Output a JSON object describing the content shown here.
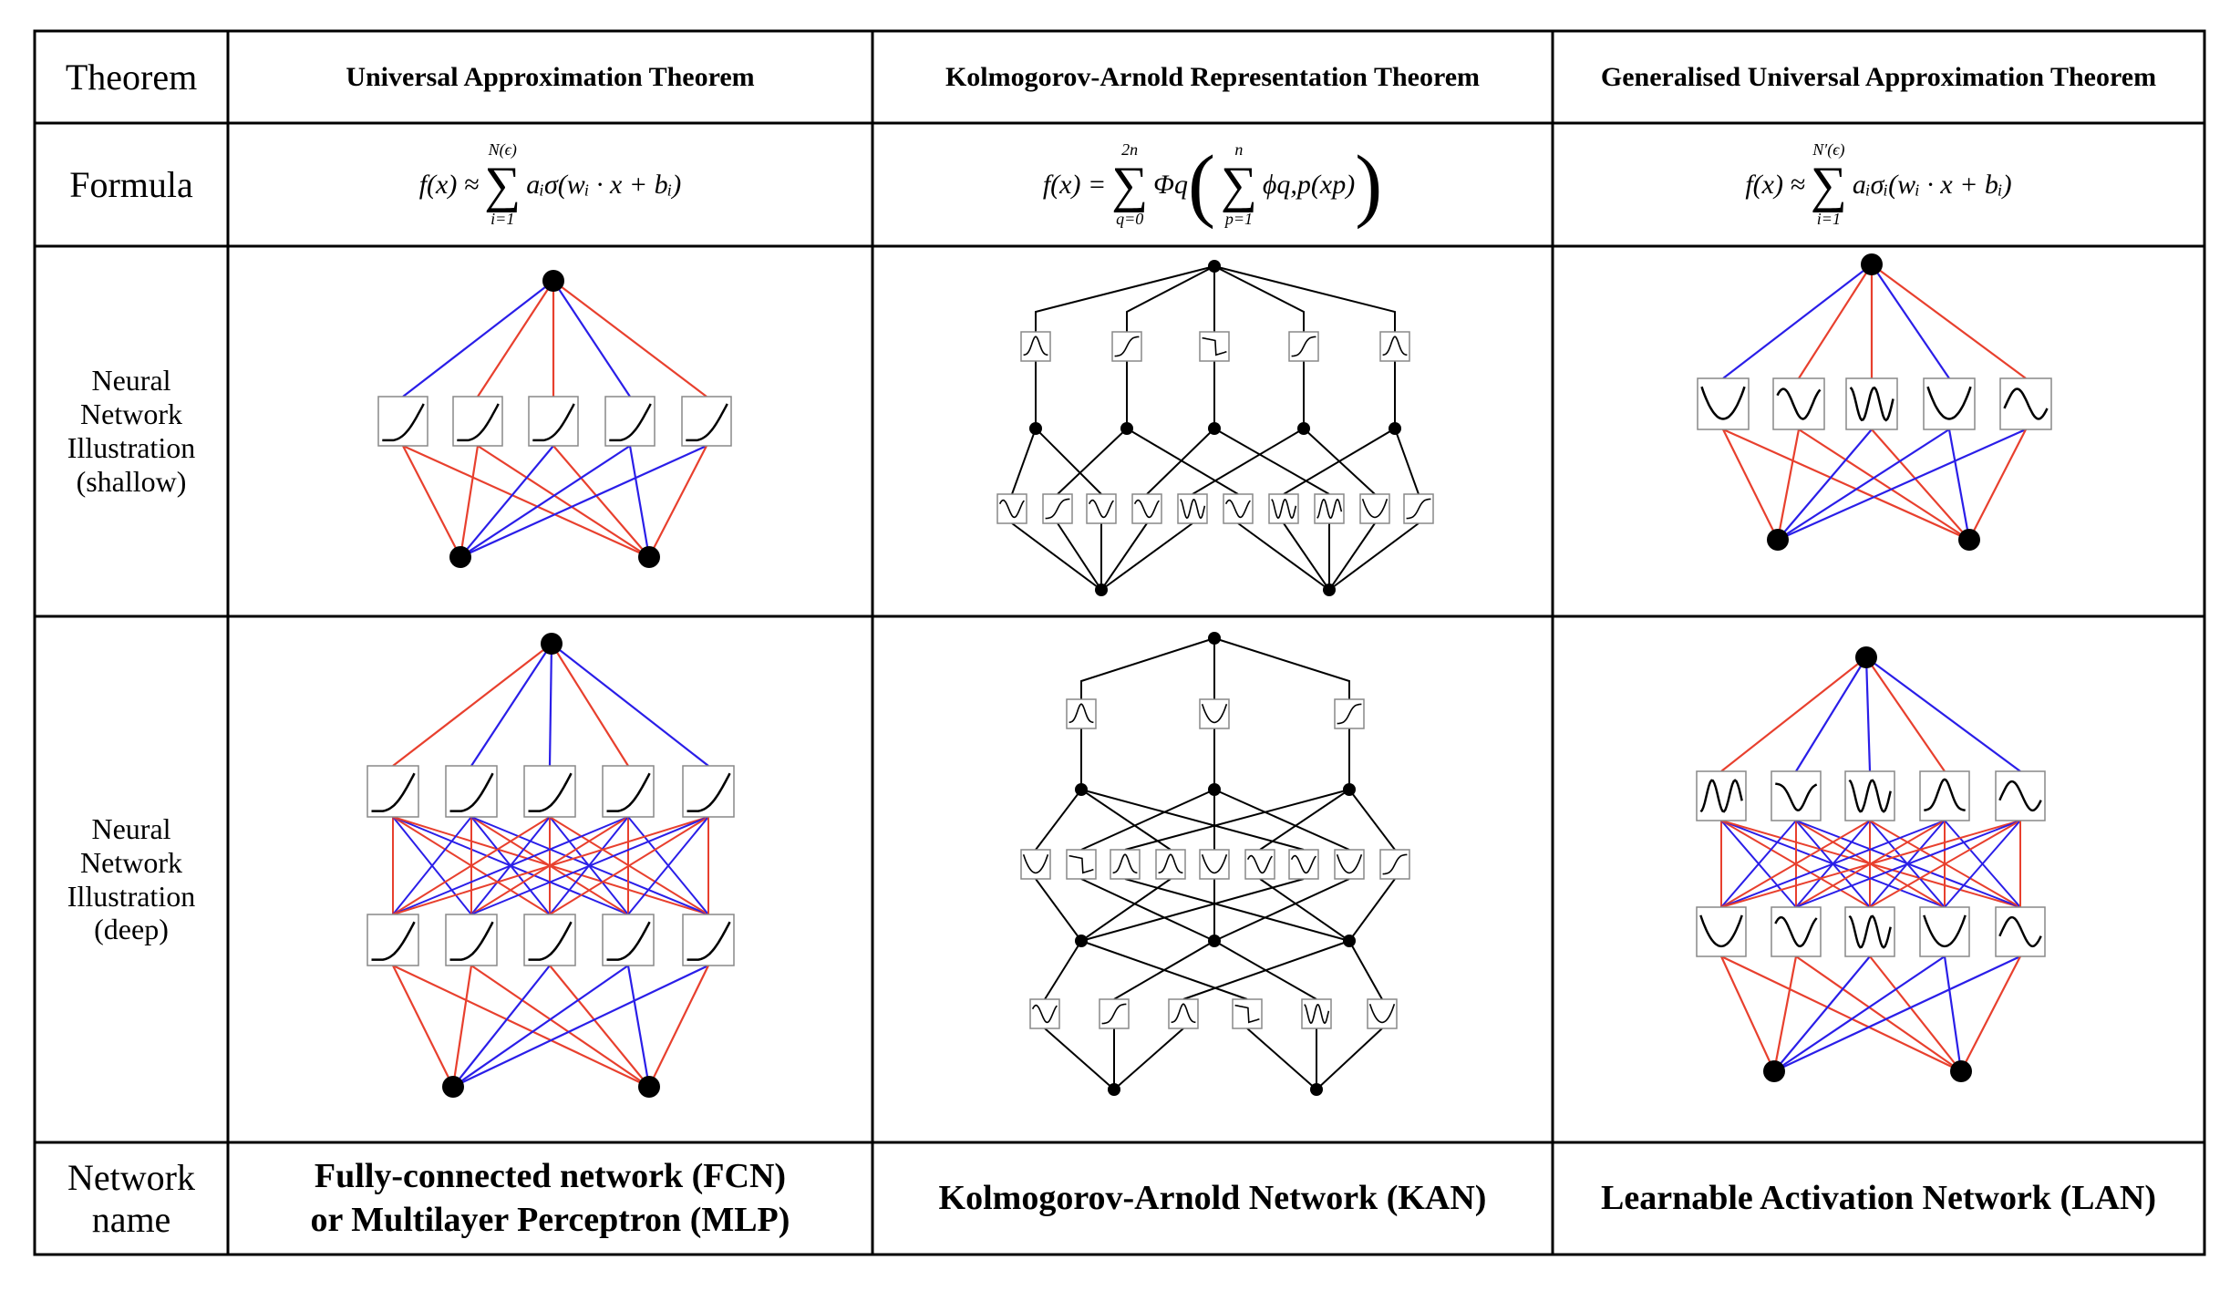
{
  "row_headers": {
    "theorem": "Theorem",
    "formula": "Formula",
    "shallow": [
      "Neural",
      "Network",
      "Illustration",
      "(shallow)"
    ],
    "deep": [
      "Neural",
      "Network",
      "Illustration",
      "(deep)"
    ],
    "network_name": [
      "Network",
      "name"
    ]
  },
  "columns": [
    {
      "theorem": "Universal Approximation Theorem",
      "formula": {
        "lhs": "f(x) ≈",
        "upper": "N(ϵ)",
        "lower": "i=1",
        "body": "aᵢσ(wᵢ · x + bᵢ)"
      },
      "network_name": [
        "Fully-connected network (FCN)",
        "or Multilayer Perceptron (MLP)"
      ]
    },
    {
      "theorem": "Kolmogorov-Arnold Representation Theorem",
      "formula": {
        "lhs": "f(x) =",
        "upper": "2n",
        "lower": "q=0",
        "outer": "Φq",
        "upper2": "n",
        "lower2": "p=1",
        "body": "ϕq,p(xp)"
      },
      "network_name": [
        "Kolmogorov-Arnold Network (KAN)"
      ]
    },
    {
      "theorem": "Generalised Universal Approximation Theorem",
      "formula": {
        "lhs": "f(x) ≈",
        "upper": "N′(ϵ)",
        "lower": "i=1",
        "body": "aᵢσᵢ(wᵢ · x + bᵢ)"
      },
      "network_name": [
        "Learnable Activation Network (LAN)"
      ]
    }
  ],
  "colors": {
    "red": "#e8402e",
    "blue": "#2a1ee8",
    "black": "#000000",
    "box_border": "#888888"
  },
  "diagrams": {
    "fcn_shallow_edges_top": [
      "blue",
      "red",
      "red",
      "blue",
      "red"
    ],
    "fcn_deep_edges_top": [
      "red",
      "blue",
      "blue",
      "red",
      "blue"
    ],
    "lan_shallow_edges_top": [
      "blue",
      "red",
      "red",
      "blue",
      "red"
    ],
    "lan_deep_edges_top": [
      "red",
      "blue",
      "blue",
      "red",
      "blue"
    ],
    "fcn_activation": "softplus",
    "lan_shallow_activations": [
      "valley",
      "wave",
      "w-shape",
      "valley",
      "sine"
    ],
    "lan_deep_activations_upper": [
      "m-shape",
      "bump-down",
      "w-shape",
      "bump",
      "sine"
    ],
    "lan_deep_activations_lower": [
      "valley",
      "wave",
      "w-shape",
      "valley",
      "sine"
    ],
    "kan_shallow_outer": [
      "bump",
      "rise",
      "step",
      "rise",
      "bump"
    ],
    "kan_shallow_inner": [
      "wave",
      "rise",
      "wave",
      "wave",
      "w-shape",
      "wave",
      "w-shape",
      "m-shape",
      "valley",
      "rise"
    ],
    "kan_deep_top": [
      "bump",
      "valley",
      "rise"
    ],
    "kan_deep_middle": [
      "valley",
      "step",
      "bump",
      "bump",
      "valley",
      "wave",
      "wave",
      "valley",
      "rise"
    ],
    "kan_deep_bottom": [
      "wave",
      "rise",
      "bump",
      "step",
      "w-shape",
      "valley"
    ]
  }
}
